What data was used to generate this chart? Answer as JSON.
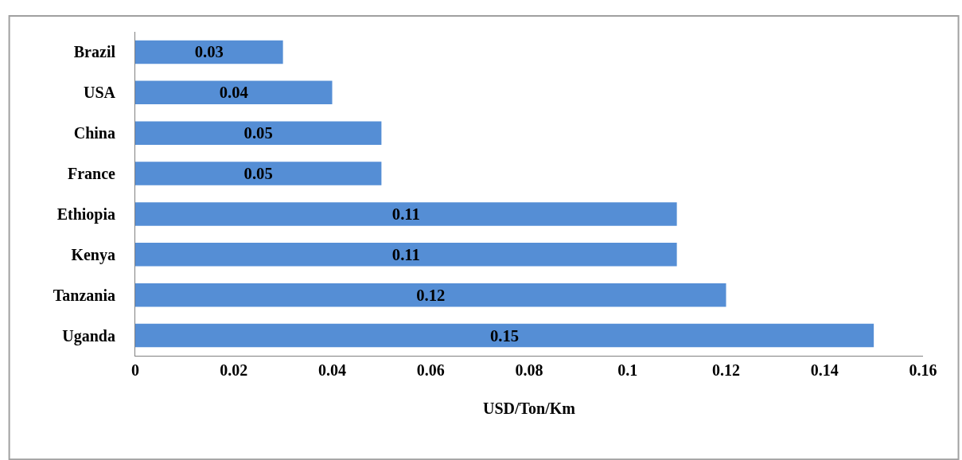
{
  "chart_data": {
    "type": "bar",
    "orientation": "horizontal",
    "categories": [
      "Brazil",
      "USA",
      "China",
      "France",
      "Ethiopia",
      "Kenya",
      "Tanzania",
      "Uganda"
    ],
    "values": [
      0.03,
      0.04,
      0.05,
      0.05,
      0.11,
      0.11,
      0.12,
      0.15
    ],
    "color": "#558ed5",
    "data_labels": true,
    "xlabel": "USD/Ton/Km",
    "xlim": [
      0,
      0.16
    ],
    "xticks": [
      0,
      0.02,
      0.04,
      0.06,
      0.08,
      0.1,
      0.12,
      0.14,
      0.16
    ]
  }
}
